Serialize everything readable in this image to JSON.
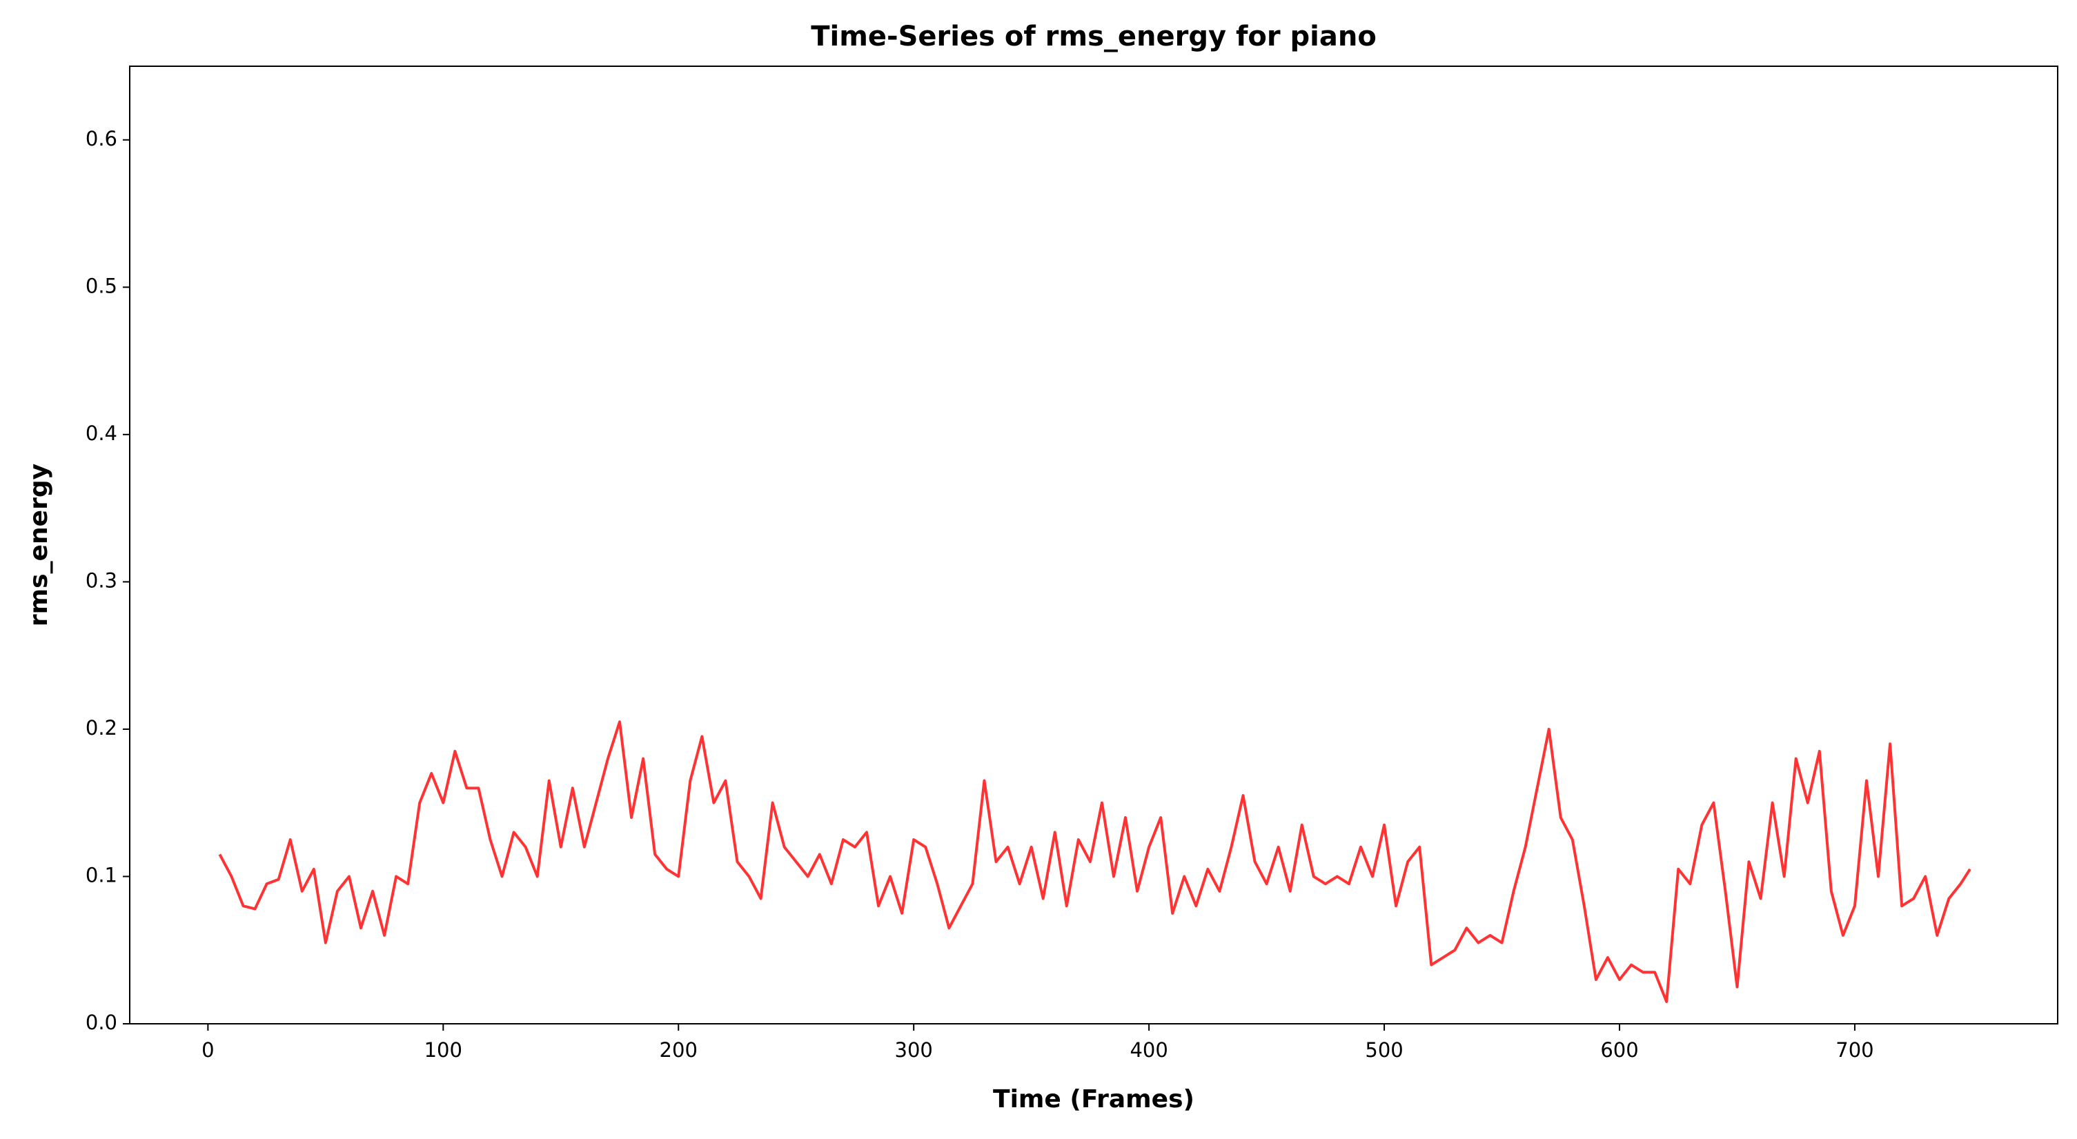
{
  "chart_data": {
    "type": "line",
    "title": "Time-Series of rms_energy for piano",
    "x_label": "Time (Frames)",
    "y_label": "rms_energy",
    "x": [
      5,
      10,
      15,
      20,
      25,
      30,
      35,
      40,
      45,
      50,
      55,
      60,
      65,
      70,
      75,
      80,
      85,
      90,
      95,
      100,
      105,
      110,
      115,
      120,
      125,
      130,
      135,
      140,
      145,
      150,
      155,
      160,
      165,
      170,
      175,
      180,
      185,
      190,
      195,
      200,
      205,
      210,
      215,
      220,
      225,
      230,
      235,
      240,
      245,
      250,
      255,
      260,
      265,
      270,
      275,
      280,
      285,
      290,
      295,
      300,
      305,
      310,
      315,
      320,
      325,
      330,
      335,
      340,
      345,
      350,
      355,
      360,
      365,
      370,
      375,
      380,
      385,
      390,
      395,
      400,
      405,
      410,
      415,
      420,
      425,
      430,
      435,
      440,
      445,
      450,
      455,
      460,
      465,
      470,
      475,
      480,
      485,
      490,
      495,
      500,
      505,
      510,
      515,
      520,
      525,
      530,
      535,
      540,
      545,
      550,
      555,
      560,
      565,
      570,
      575,
      580,
      585,
      590,
      595,
      600,
      605,
      610,
      615,
      620,
      625,
      630,
      635,
      640,
      645,
      650,
      655,
      660,
      665,
      670,
      675,
      680,
      685,
      690,
      695,
      700,
      705,
      710,
      715,
      720,
      725,
      730,
      735,
      740,
      745,
      749
    ],
    "series": [
      {
        "name": "rms_energy",
        "color": "#ff3333",
        "values": [
          0.115,
          0.1,
          0.08,
          0.078,
          0.095,
          0.098,
          0.125,
          0.09,
          0.105,
          0.055,
          0.09,
          0.1,
          0.065,
          0.09,
          0.06,
          0.1,
          0.095,
          0.15,
          0.17,
          0.15,
          0.185,
          0.16,
          0.16,
          0.125,
          0.1,
          0.13,
          0.12,
          0.1,
          0.165,
          0.12,
          0.16,
          0.12,
          0.15,
          0.18,
          0.205,
          0.14,
          0.18,
          0.115,
          0.105,
          0.1,
          0.165,
          0.195,
          0.15,
          0.165,
          0.11,
          0.1,
          0.085,
          0.15,
          0.12,
          0.11,
          0.1,
          0.115,
          0.095,
          0.125,
          0.12,
          0.13,
          0.08,
          0.1,
          0.075,
          0.125,
          0.12,
          0.095,
          0.065,
          0.08,
          0.095,
          0.165,
          0.11,
          0.12,
          0.095,
          0.12,
          0.085,
          0.13,
          0.08,
          0.125,
          0.11,
          0.15,
          0.1,
          0.14,
          0.09,
          0.12,
          0.14,
          0.075,
          0.1,
          0.08,
          0.105,
          0.09,
          0.12,
          0.155,
          0.11,
          0.095,
          0.12,
          0.09,
          0.135,
          0.1,
          0.095,
          0.1,
          0.095,
          0.12,
          0.1,
          0.135,
          0.08,
          0.11,
          0.12,
          0.04,
          0.045,
          0.05,
          0.065,
          0.055,
          0.06,
          0.055,
          0.09,
          0.12,
          0.16,
          0.2,
          0.14,
          0.125,
          0.08,
          0.03,
          0.045,
          0.03,
          0.04,
          0.035,
          0.035,
          0.015,
          0.105,
          0.095,
          0.135,
          0.15,
          0.09,
          0.025,
          0.11,
          0.085,
          0.15,
          0.1,
          0.18,
          0.15,
          0.185,
          0.09,
          0.06,
          0.08,
          0.165,
          0.1,
          0.19,
          0.08,
          0.085,
          0.1,
          0.06,
          0.085,
          0.095,
          0.105
        ]
      }
    ],
    "xlim": [
      -33.25,
      786.25
    ],
    "xticks": [
      0,
      100,
      200,
      300,
      400,
      500,
      600,
      700
    ],
    "ylim": [
      0,
      0.65
    ],
    "yticks": [
      {
        "value": 0,
        "label": "0.0"
      },
      0.1,
      0.2,
      0.3,
      0.4,
      0.5,
      0.6
    ],
    "grid": false
  }
}
